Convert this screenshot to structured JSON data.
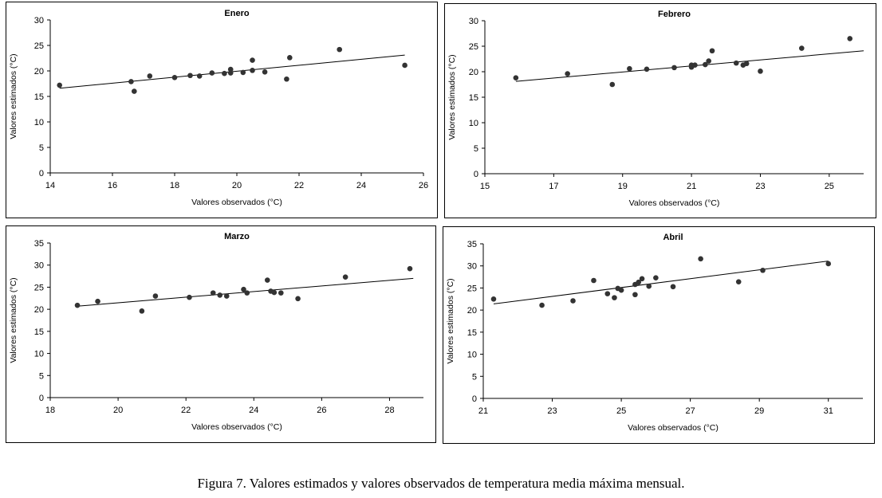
{
  "caption": "Figura  7. Valores estimados y valores observados de temperatura media máxima mensual.",
  "chart_data": [
    {
      "type": "scatter",
      "title": "Enero",
      "xlabel": "Valores observados (°C)",
      "ylabel": "Valores estimados (°C)",
      "xlim": [
        14,
        26
      ],
      "ylim": [
        0,
        30
      ],
      "xticks": [
        "14",
        "16",
        "18",
        "20",
        "22",
        "24",
        "26"
      ],
      "yticks": [
        "0",
        "5",
        "10",
        "15",
        "20",
        "25",
        "30"
      ],
      "xtick_values": [
        14,
        16,
        18,
        20,
        22,
        24,
        26
      ],
      "ytick_values": [
        0,
        5,
        10,
        15,
        20,
        25,
        30
      ],
      "grid": false,
      "points": [
        [
          14.3,
          17.2
        ],
        [
          16.6,
          17.9
        ],
        [
          16.7,
          16.0
        ],
        [
          17.2,
          19.0
        ],
        [
          18.0,
          18.7
        ],
        [
          18.5,
          19.1
        ],
        [
          18.8,
          19.0
        ],
        [
          19.2,
          19.6
        ],
        [
          19.6,
          19.5
        ],
        [
          19.8,
          19.6
        ],
        [
          19.8,
          20.3
        ],
        [
          20.2,
          19.7
        ],
        [
          20.5,
          20.1
        ],
        [
          20.5,
          22.1
        ],
        [
          20.9,
          19.8
        ],
        [
          21.6,
          18.4
        ],
        [
          21.7,
          22.6
        ],
        [
          23.3,
          24.2
        ],
        [
          25.4,
          21.1
        ]
      ],
      "trendline": [
        [
          14.3,
          16.6
        ],
        [
          25.4,
          23.1
        ]
      ]
    },
    {
      "type": "scatter",
      "title": "Febrero",
      "xlabel": "Valores observados (°C)",
      "ylabel": "Valores estimados (°C)",
      "xlim": [
        15,
        26
      ],
      "ylim": [
        0,
        30
      ],
      "xticks": [
        "15",
        "17",
        "19",
        "21",
        "23",
        "25"
      ],
      "yticks": [
        "0",
        "5",
        "10",
        "15",
        "20",
        "25",
        "30"
      ],
      "xtick_values": [
        15,
        17,
        19,
        21,
        23,
        25
      ],
      "ytick_values": [
        0,
        5,
        10,
        15,
        20,
        25,
        30
      ],
      "grid": false,
      "points": [
        [
          15.9,
          18.8
        ],
        [
          17.4,
          19.6
        ],
        [
          18.7,
          17.5
        ],
        [
          19.2,
          20.6
        ],
        [
          19.7,
          20.5
        ],
        [
          20.5,
          20.8
        ],
        [
          21.0,
          20.9
        ],
        [
          21.0,
          21.3
        ],
        [
          21.1,
          21.3
        ],
        [
          21.4,
          21.4
        ],
        [
          21.5,
          22.1
        ],
        [
          21.6,
          24.1
        ],
        [
          22.3,
          21.7
        ],
        [
          22.5,
          21.3
        ],
        [
          22.6,
          21.6
        ],
        [
          23.0,
          20.1
        ],
        [
          24.2,
          24.6
        ],
        [
          25.6,
          26.5
        ]
      ],
      "trendline": [
        [
          15.9,
          18.1
        ],
        [
          26.0,
          24.1
        ]
      ]
    },
    {
      "type": "scatter",
      "title": "Marzo",
      "xlabel": "Valores observados (°C)",
      "ylabel": "Valores estimados (°C)",
      "xlim": [
        18,
        29
      ],
      "ylim": [
        0,
        35
      ],
      "xticks": [
        "18",
        "20",
        "22",
        "24",
        "26",
        "28"
      ],
      "yticks": [
        "0",
        "5",
        "10",
        "15",
        "20",
        "25",
        "30",
        "35"
      ],
      "xtick_values": [
        18,
        20,
        22,
        24,
        26,
        28
      ],
      "ytick_values": [
        0,
        5,
        10,
        15,
        20,
        25,
        30,
        35
      ],
      "grid": false,
      "points": [
        [
          18.8,
          20.9
        ],
        [
          19.4,
          21.8
        ],
        [
          20.7,
          19.6
        ],
        [
          21.1,
          23.0
        ],
        [
          22.1,
          22.7
        ],
        [
          22.8,
          23.7
        ],
        [
          23.0,
          23.2
        ],
        [
          23.2,
          23.0
        ],
        [
          23.7,
          24.5
        ],
        [
          23.8,
          23.7
        ],
        [
          24.4,
          26.6
        ],
        [
          24.5,
          24.1
        ],
        [
          24.6,
          23.8
        ],
        [
          24.8,
          23.7
        ],
        [
          25.3,
          22.4
        ],
        [
          26.7,
          27.3
        ],
        [
          28.6,
          29.2
        ]
      ],
      "trendline": [
        [
          18.8,
          20.7
        ],
        [
          28.7,
          27.0
        ]
      ]
    },
    {
      "type": "scatter",
      "title": "Abril",
      "xlabel": "Valores observados (°C)",
      "ylabel": "Valores estimados (°C)",
      "xlim": [
        21,
        32
      ],
      "ylim": [
        0,
        35
      ],
      "xticks": [
        "21",
        "23",
        "25",
        "27",
        "29",
        "31"
      ],
      "yticks": [
        "0",
        "5",
        "10",
        "15",
        "20",
        "25",
        "30",
        "35"
      ],
      "xtick_values": [
        21,
        23,
        25,
        27,
        29,
        31
      ],
      "ytick_values": [
        0,
        5,
        10,
        15,
        20,
        25,
        30,
        35
      ],
      "grid": false,
      "points": [
        [
          21.3,
          22.5
        ],
        [
          22.7,
          21.1
        ],
        [
          23.6,
          22.1
        ],
        [
          24.2,
          26.7
        ],
        [
          24.6,
          23.7
        ],
        [
          24.8,
          22.8
        ],
        [
          24.9,
          24.9
        ],
        [
          25.0,
          24.5
        ],
        [
          25.4,
          23.5
        ],
        [
          25.4,
          25.8
        ],
        [
          25.5,
          26.3
        ],
        [
          25.6,
          27.1
        ],
        [
          25.8,
          25.4
        ],
        [
          26.0,
          27.3
        ],
        [
          26.5,
          25.3
        ],
        [
          27.3,
          31.6
        ],
        [
          28.4,
          26.4
        ],
        [
          29.1,
          29.0
        ],
        [
          31.0,
          30.5
        ]
      ],
      "trendline": [
        [
          21.3,
          21.4
        ],
        [
          31.0,
          31.1
        ]
      ]
    }
  ]
}
